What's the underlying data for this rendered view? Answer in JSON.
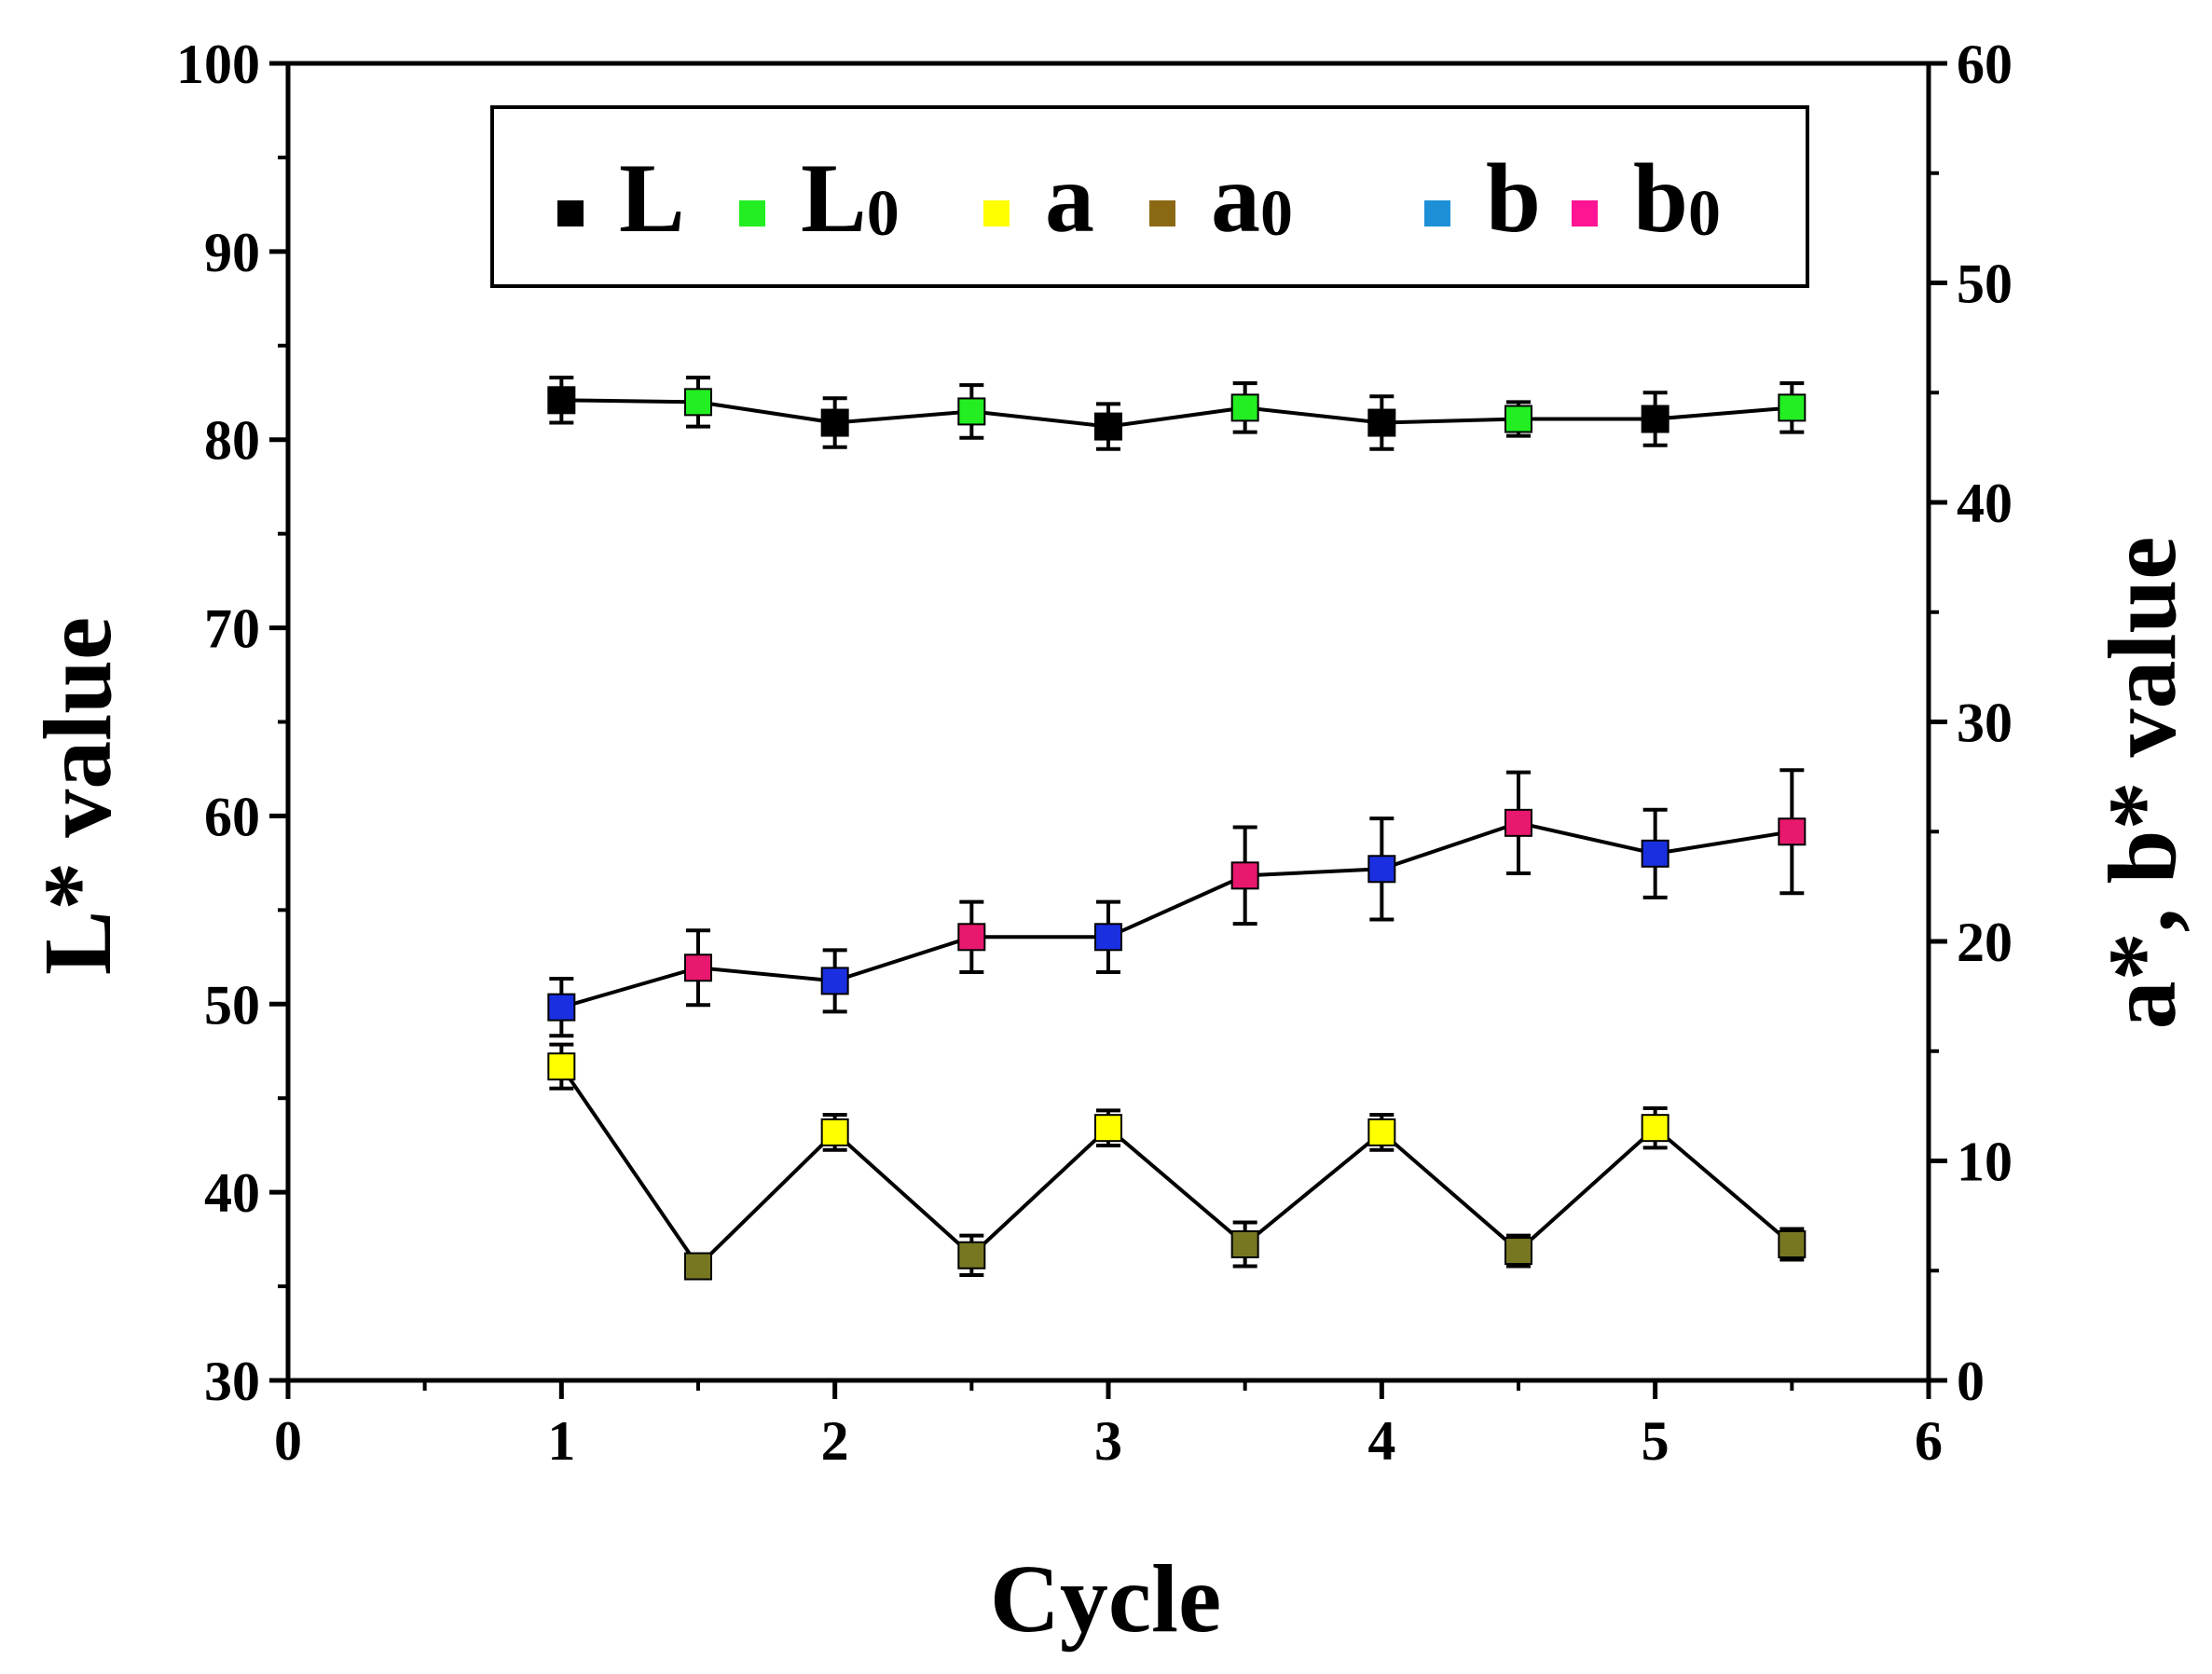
{
  "chart_data": {
    "type": "line",
    "xlabel": "Cycle",
    "ylabel_left": "L* value",
    "ylabel_right": "a*, b* value",
    "xlim": [
      0,
      6
    ],
    "ylim_left": [
      30,
      100
    ],
    "ylim_right": [
      0,
      60
    ],
    "x_ticks": [
      "0",
      "1",
      "2",
      "3",
      "4",
      "5",
      "6"
    ],
    "y_left_ticks": [
      "30",
      "40",
      "50",
      "60",
      "70",
      "80",
      "90",
      "100"
    ],
    "y_right_ticks": [
      "0",
      "10",
      "20",
      "30",
      "40",
      "50",
      "60"
    ],
    "grid": false,
    "legend": {
      "position": "top",
      "entries": [
        {
          "main": "L",
          "sub": "",
          "color": "#000000"
        },
        {
          "main": "L",
          "sub": "0",
          "color": "#22ee22"
        },
        {
          "main": "a",
          "sub": "",
          "color": "#ffff00"
        },
        {
          "main": "a",
          "sub": "0",
          "color": "#8b6914"
        },
        {
          "main": "b",
          "sub": "",
          "color": "#1e90d8"
        },
        {
          "main": "b",
          "sub": "0",
          "color": "#ff1493"
        }
      ]
    },
    "series": [
      {
        "axis": "left",
        "x": [
          1,
          1.5,
          2,
          2.5,
          3,
          3.5,
          4,
          4.5,
          5,
          5.5
        ],
        "values": [
          82.1,
          82.0,
          80.9,
          81.5,
          80.7,
          81.7,
          80.9,
          81.1,
          81.1,
          81.7
        ],
        "errors": [
          1.2,
          1.3,
          1.3,
          1.4,
          1.2,
          1.3,
          1.4,
          0.9,
          1.4,
          1.3
        ],
        "colors": [
          "#000000",
          "#22ee22",
          "#000000",
          "#22ee22",
          "#000000",
          "#22ee22",
          "#000000",
          "#22ee22",
          "#000000",
          "#22ee22"
        ]
      },
      {
        "axis": "right",
        "x": [
          1,
          1.5,
          2,
          2.5,
          3,
          3.5,
          4,
          4.5,
          5,
          5.5
        ],
        "values": [
          17.0,
          18.8,
          18.2,
          20.2,
          20.2,
          23.0,
          23.3,
          25.4,
          24.0,
          25.0
        ],
        "errors": [
          1.3,
          1.7,
          1.4,
          1.6,
          1.6,
          2.2,
          2.3,
          2.3,
          2.0,
          2.8
        ],
        "colors": [
          "#1a2fe0",
          "#e8186e",
          "#1a2fe0",
          "#e8186e",
          "#1a2fe0",
          "#e8186e",
          "#1a2fe0",
          "#e8186e",
          "#1a2fe0",
          "#e8186e"
        ]
      },
      {
        "axis": "right",
        "x": [
          1,
          1.5,
          2,
          2.5,
          3,
          3.5,
          4,
          4.5,
          5,
          5.5
        ],
        "values": [
          14.3,
          5.2,
          11.3,
          5.7,
          11.5,
          6.2,
          11.3,
          5.9,
          11.5,
          6.2
        ],
        "errors": [
          1.0,
          0.5,
          0.8,
          0.9,
          0.8,
          1.0,
          0.8,
          0.7,
          0.9,
          0.7
        ],
        "colors": [
          "#ffff00",
          "#777722",
          "#ffff00",
          "#777722",
          "#ffff00",
          "#777722",
          "#ffff00",
          "#777722",
          "#ffff00",
          "#777722"
        ]
      }
    ]
  }
}
